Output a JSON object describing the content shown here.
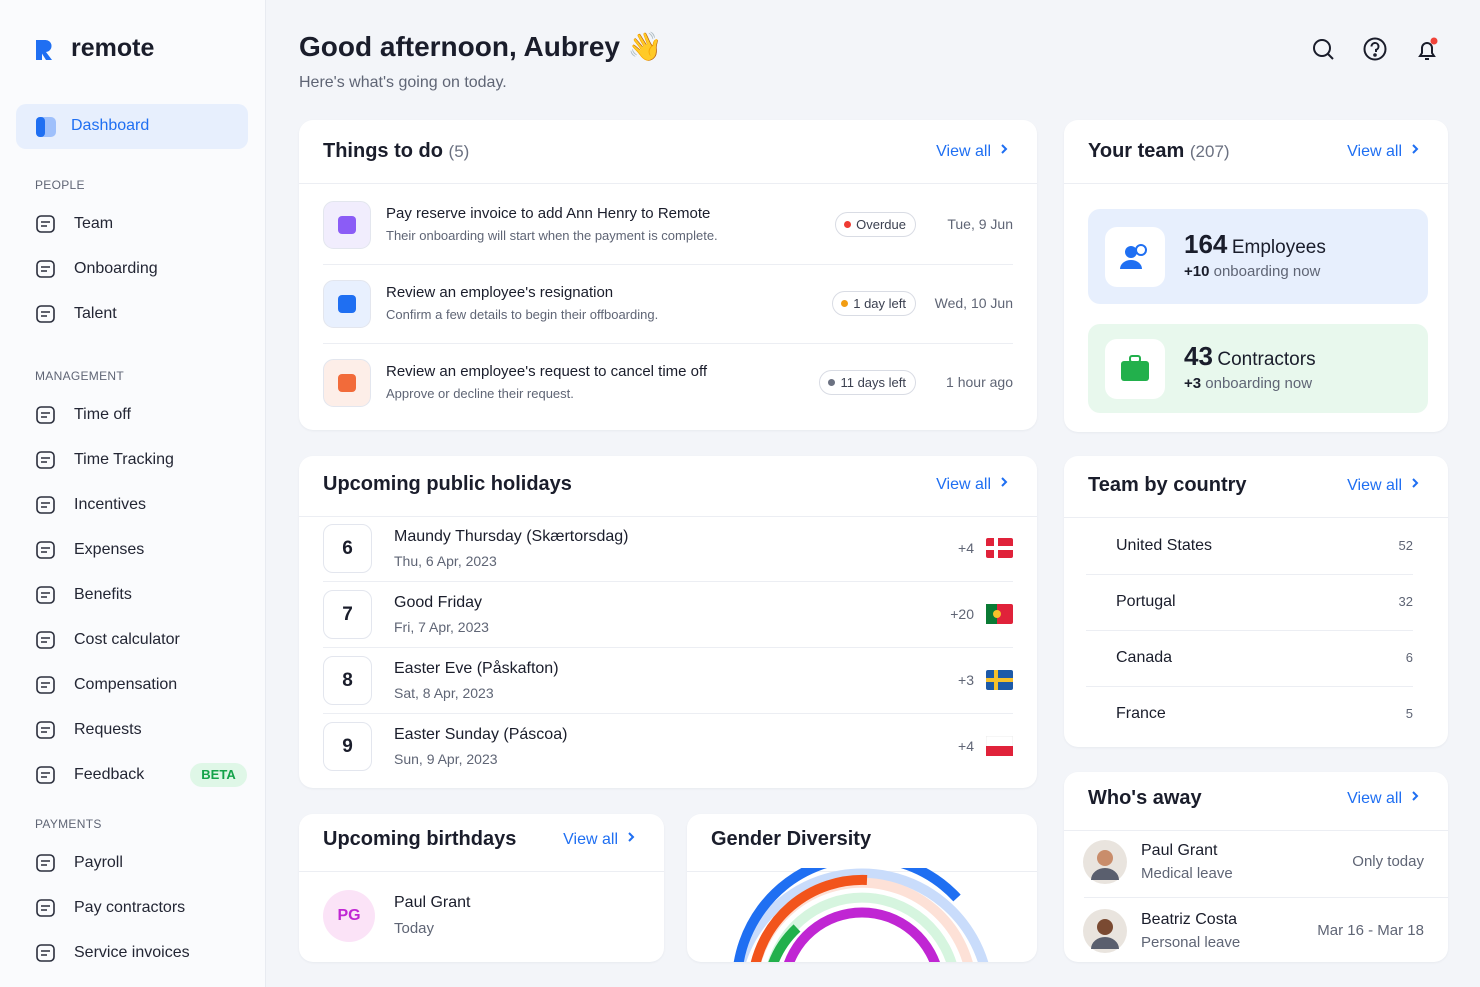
{
  "brand": "remote",
  "sidebar": {
    "active": "Dashboard",
    "beta": "BETA",
    "sections": [
      {
        "title": "PEOPLE",
        "items": [
          "Team",
          "Onboarding",
          "Talent"
        ]
      },
      {
        "title": "MANAGEMENT",
        "items": [
          "Time off",
          "Time Tracking",
          "Incentives",
          "Expenses",
          "Benefits",
          "Cost calculator",
          "Compensation",
          "Requests",
          "Feedback"
        ]
      },
      {
        "title": "PAYMENTS",
        "items": [
          "Payroll",
          "Pay contractors",
          "Service invoices"
        ]
      }
    ]
  },
  "header": {
    "greeting": "Good afternoon, Aubrey",
    "emoji": "👋",
    "subtitle": "Here's what's going on today."
  },
  "todo": {
    "title": "Things to do",
    "count": "(5)",
    "view_all": "View all",
    "items": [
      {
        "title": "Pay reserve invoice to add Ann Henry to Remote",
        "description": "Their onboarding will start when the payment is complete.",
        "status": "Overdue",
        "date": "Tue, 9 Jun"
      },
      {
        "title": "Review an employee's resignation",
        "description": "Confirm a few details to begin their offboarding.",
        "status": "1 day left",
        "date": "Wed, 10 Jun"
      },
      {
        "title": "Review an employee's request to cancel time off",
        "description": "Approve or decline their request.",
        "status": "11 days left",
        "date": "1 hour ago"
      }
    ]
  },
  "holidays": {
    "title": "Upcoming public holidays",
    "view_all": "View all",
    "items": [
      {
        "day": 6,
        "name": "Maundy Thursday (Skærtorsdag)",
        "date": "Thu, 6 Apr, 2023",
        "extra": "+4"
      },
      {
        "day": 7,
        "name": "Good Friday",
        "date": "Fri, 7 Apr, 2023",
        "extra": "+20"
      },
      {
        "day": 8,
        "name": "Easter Eve (Påskafton)",
        "date": "Sat, 8 Apr, 2023",
        "extra": "+3"
      },
      {
        "day": 9,
        "name": "Easter Sunday (Páscoa)",
        "date": "Sun, 9 Apr, 2023",
        "extra": "+4"
      }
    ]
  },
  "birthdays": {
    "title": "Upcoming birthdays",
    "view_all": "View all",
    "items": [
      {
        "initials": "PG",
        "name": "Paul Grant",
        "when": "Today"
      }
    ]
  },
  "gender": {
    "title": "Gender Diversity"
  },
  "team": {
    "title": "Your team",
    "count": "(207)",
    "view_all": "View all",
    "stats": [
      {
        "number": 164,
        "label": "Employees",
        "delta": "+10",
        "note": "onboarding now"
      },
      {
        "number": 43,
        "label": "Contractors",
        "delta": "+3",
        "note": "onboarding now"
      }
    ]
  },
  "country": {
    "title": "Team by country",
    "view_all": "View all",
    "rows": [
      {
        "name": "United States",
        "count": 52
      },
      {
        "name": "Portugal",
        "count": 32
      },
      {
        "name": "Canada",
        "count": 6
      },
      {
        "name": "France",
        "count": 5
      }
    ]
  },
  "away": {
    "title": "Who's away",
    "view_all": "View all",
    "items": [
      {
        "name": "Paul Grant",
        "reason": "Medical leave",
        "when": "Only today"
      },
      {
        "name": "Beatriz Costa",
        "reason": "Personal leave",
        "when": "Mar 16 - Mar 18"
      }
    ]
  }
}
